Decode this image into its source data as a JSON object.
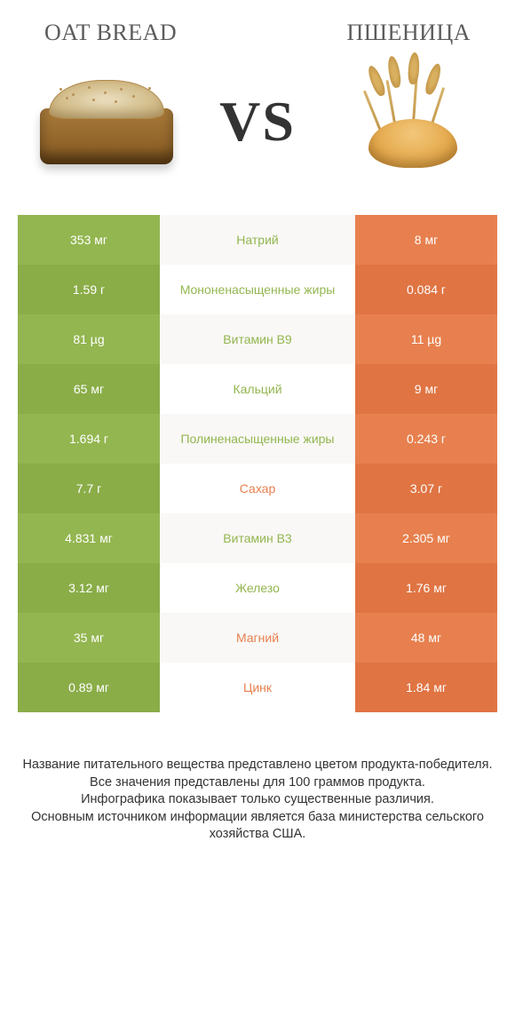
{
  "colors": {
    "left_bar": "#93b650",
    "left_bar_alt": "#8aad48",
    "right_bar": "#e7804e",
    "right_bar_alt": "#e07443",
    "label_left": "#93b650",
    "label_right": "#e7804e",
    "stripe_even": "#f9f8f6",
    "title_text": "#5c5c5c"
  },
  "header": {
    "left_title": "OAT BREAD",
    "right_title": "ПШЕНИЦА",
    "vs_text": "VS"
  },
  "rows": [
    {
      "left": "353 мг",
      "label": "Натрий",
      "right": "8 мг",
      "winner": "left"
    },
    {
      "left": "1.59 г",
      "label": "Мононенасыщенные жиры",
      "right": "0.084 г",
      "winner": "left"
    },
    {
      "left": "81 µg",
      "label": "Витамин B9",
      "right": "11 µg",
      "winner": "left"
    },
    {
      "left": "65 мг",
      "label": "Кальций",
      "right": "9 мг",
      "winner": "left"
    },
    {
      "left": "1.694 г",
      "label": "Полиненасыщенные жиры",
      "right": "0.243 г",
      "winner": "left"
    },
    {
      "left": "7.7 г",
      "label": "Сахар",
      "right": "3.07 г",
      "winner": "right"
    },
    {
      "left": "4.831 мг",
      "label": "Витамин B3",
      "right": "2.305 мг",
      "winner": "left"
    },
    {
      "left": "3.12 мг",
      "label": "Железо",
      "right": "1.76 мг",
      "winner": "left"
    },
    {
      "left": "35 мг",
      "label": "Магний",
      "right": "48 мг",
      "winner": "right"
    },
    {
      "left": "0.89 мг",
      "label": "Цинк",
      "right": "1.84 мг",
      "winner": "right"
    }
  ],
  "footer": {
    "line1": "Название питательного вещества представлено цветом продукта-победителя.",
    "line2": "Все значения представлены для 100 граммов продукта.",
    "line3": "Инфографика показывает только существенные различия.",
    "line4": "Основным источником информации является база министерства сельского хозяйства США."
  }
}
